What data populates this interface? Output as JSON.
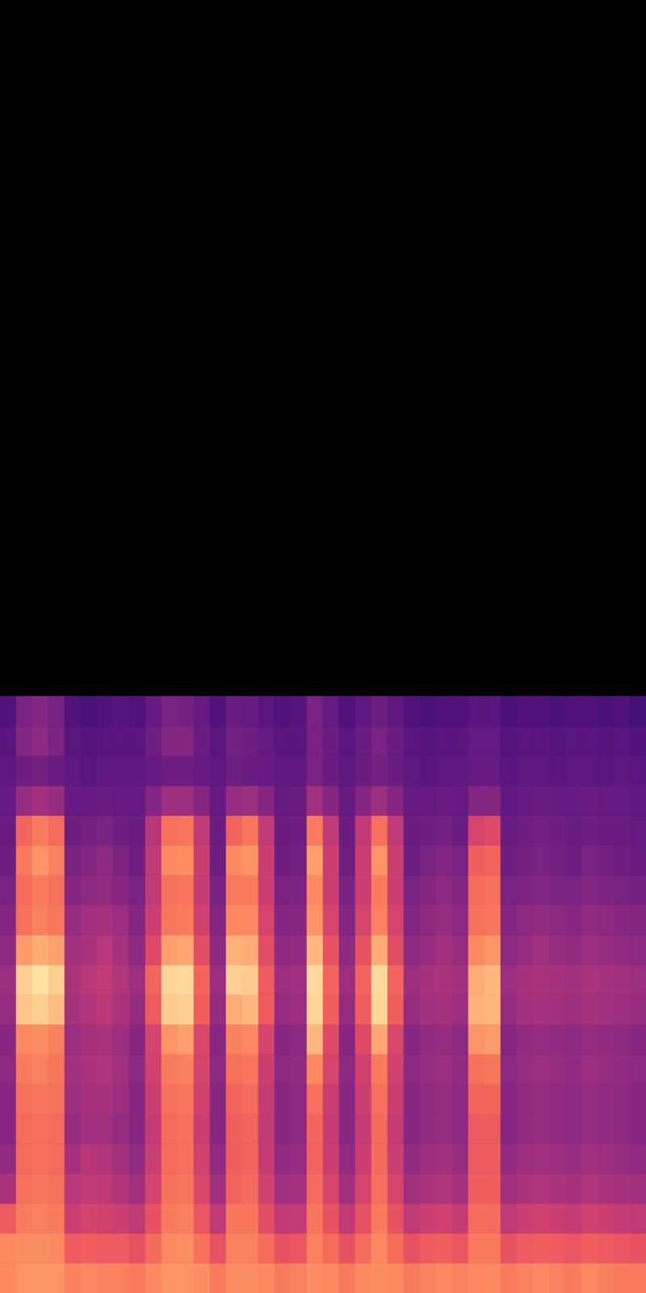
{
  "chart_data": {
    "type": "heatmap",
    "color": "magma",
    "tick_labels": false,
    "xlim": [
      0,
      40
    ],
    "ylim": [
      0,
      130
    ],
    "zlim": [
      -80,
      0
    ],
    "x_edges": [
      0,
      1,
      2,
      3,
      4,
      5,
      6,
      7,
      8,
      9,
      10,
      11,
      12,
      13,
      14,
      15,
      16,
      17,
      18,
      19,
      20,
      21,
      22,
      23,
      24,
      25,
      26,
      27,
      28,
      29,
      30,
      31,
      32,
      33,
      34,
      35,
      36,
      37,
      38,
      39,
      40
    ],
    "y_edges": [
      0,
      3,
      6,
      9,
      12,
      15,
      18,
      21,
      24,
      27,
      30,
      33,
      36,
      39,
      42,
      45,
      48,
      51,
      54,
      57,
      60
    ],
    "cells": [
      [
        -20,
        -18,
        -18,
        -18,
        -21,
        -20,
        -21,
        -21,
        -22,
        -20,
        -18,
        -18,
        -19,
        -22,
        -19,
        -19,
        -20,
        -22,
        -21,
        -19,
        -20,
        -22,
        -20,
        -19,
        -20,
        -22,
        -21,
        -20,
        -21,
        -20,
        -20,
        -22,
        -21,
        -20,
        -21,
        -22,
        -20,
        -21,
        -22,
        -22
      ],
      [
        -20,
        -19,
        -19,
        -20,
        -28,
        -27,
        -28,
        -28,
        -30,
        -25,
        -20,
        -19,
        -24,
        -30,
        -21,
        -21,
        -25,
        -30,
        -29,
        -21,
        -25,
        -30,
        -25,
        -20,
        -25,
        -30,
        -28,
        -27,
        -29,
        -22,
        -22,
        -30,
        -28,
        -27,
        -28,
        -29,
        -27,
        -28,
        -29,
        -30
      ],
      [
        -28,
        -22,
        -21,
        -22,
        -36,
        -34,
        -35,
        -36,
        -38,
        -30,
        -22,
        -21,
        -29,
        -38,
        -23,
        -23,
        -31,
        -38,
        -37,
        -23,
        -30,
        -38,
        -30,
        -22,
        -30,
        -38,
        -36,
        -35,
        -37,
        -25,
        -25,
        -38,
        -36,
        -35,
        -36,
        -37,
        -35,
        -36,
        -37,
        -38
      ],
      [
        -42,
        -24,
        -23,
        -24,
        -40,
        -38,
        -39,
        -41,
        -44,
        -34,
        -24,
        -23,
        -33,
        -44,
        -26,
        -25,
        -35,
        -44,
        -43,
        -25,
        -34,
        -44,
        -34,
        -24,
        -34,
        -44,
        -42,
        -41,
        -43,
        -27,
        -27,
        -44,
        -42,
        -41,
        -42,
        -43,
        -41,
        -42,
        -43,
        -44
      ],
      [
        -47,
        -25,
        -24,
        -25,
        -43,
        -40,
        -41,
        -44,
        -47,
        -36,
        -25,
        -24,
        -35,
        -47,
        -27,
        -26,
        -37,
        -47,
        -46,
        -26,
        -36,
        -47,
        -36,
        -25,
        -36,
        -47,
        -45,
        -44,
        -46,
        -28,
        -28,
        -47,
        -45,
        -44,
        -45,
        -46,
        -44,
        -45,
        -46,
        -47
      ],
      [
        -49,
        -25,
        -24,
        -25,
        -46,
        -44,
        -44,
        -46,
        -49,
        -37,
        -25,
        -24,
        -36,
        -49,
        -27,
        -26,
        -38,
        -49,
        -48,
        -26,
        -37,
        -49,
        -37,
        -25,
        -37,
        -49,
        -47,
        -46,
        -48,
        -28,
        -28,
        -49,
        -47,
        -46,
        -47,
        -48,
        -46,
        -47,
        -48,
        -49
      ],
      [
        -49,
        -24,
        -23,
        -24,
        -45,
        -43,
        -43,
        -45,
        -49,
        -36,
        -24,
        -23,
        -35,
        -49,
        -26,
        -25,
        -37,
        -49,
        -48,
        -24,
        -36,
        -49,
        -36,
        -24,
        -36,
        -49,
        -47,
        -46,
        -48,
        -26,
        -26,
        -49,
        -47,
        -46,
        -47,
        -48,
        -46,
        -47,
        -48,
        -49
      ],
      [
        -48,
        -22,
        -21,
        -23,
        -44,
        -42,
        -41,
        -44,
        -48,
        -35,
        -22,
        -21,
        -34,
        -48,
        -24,
        -23,
        -36,
        -48,
        -47,
        -20,
        -34,
        -48,
        -35,
        -22,
        -35,
        -48,
        -46,
        -45,
        -47,
        -24,
        -23,
        -48,
        -46,
        -45,
        -46,
        -47,
        -45,
        -46,
        -47,
        -48
      ],
      [
        -49,
        -20,
        -19,
        -21,
        -45,
        -43,
        -42,
        -45,
        -49,
        -34,
        -18,
        -16,
        -33,
        -49,
        -21,
        -20,
        -34,
        -49,
        -48,
        -12,
        -32,
        -49,
        -32,
        -15,
        -33,
        -49,
        -47,
        -46,
        -48,
        -18,
        -17,
        -49,
        -47,
        -46,
        -47,
        -48,
        -46,
        -47,
        -48,
        -49
      ],
      [
        -46,
        -10,
        -8,
        -11,
        -43,
        -41,
        -40,
        -42,
        -46,
        -28,
        -9,
        -8,
        -27,
        -46,
        -14,
        -12,
        -28,
        -46,
        -45,
        -7,
        -27,
        -46,
        -27,
        -7,
        -27,
        -46,
        -44,
        -43,
        -45,
        -13,
        -12,
        -46,
        -44,
        -43,
        -44,
        -45,
        -43,
        -44,
        -45,
        -46
      ],
      [
        -45,
        -8,
        -5,
        -8,
        -42,
        -40,
        -38,
        -41,
        -45,
        -26,
        -7,
        -6,
        -26,
        -45,
        -8,
        -9,
        -28,
        -45,
        -44,
        -6,
        -26,
        -45,
        -26,
        -6,
        -26,
        -45,
        -43,
        -42,
        -44,
        -14,
        -12,
        -45,
        -43,
        -42,
        -43,
        -44,
        -42,
        -43,
        -44,
        -45
      ],
      [
        -48,
        -17,
        -14,
        -16,
        -44,
        -42,
        -40,
        -43,
        -48,
        -32,
        -16,
        -15,
        -31,
        -48,
        -13,
        -14,
        -31,
        -48,
        -47,
        -12,
        -30,
        -48,
        -30,
        -14,
        -31,
        -48,
        -46,
        -44,
        -46,
        -20,
        -18,
        -48,
        -46,
        -44,
        -46,
        -47,
        -45,
        -46,
        -47,
        -48
      ],
      [
        -50,
        -24,
        -21,
        -23,
        -46,
        -44,
        -43,
        -45,
        -50,
        -36,
        -23,
        -22,
        -35,
        -50,
        -20,
        -20,
        -34,
        -50,
        -49,
        -18,
        -34,
        -50,
        -34,
        -21,
        -34,
        -50,
        -48,
        -46,
        -48,
        -24,
        -23,
        -50,
        -48,
        -47,
        -48,
        -49,
        -47,
        -48,
        -49,
        -50
      ],
      [
        -52,
        -25,
        -22,
        -24,
        -50,
        -48,
        -47,
        -49,
        -52,
        -38,
        -24,
        -23,
        -37,
        -52,
        -22,
        -22,
        -36,
        -52,
        -51,
        -20,
        -36,
        -52,
        -36,
        -22,
        -36,
        -52,
        -50,
        -48,
        -50,
        -25,
        -24,
        -52,
        -51,
        -50,
        -51,
        -52,
        -50,
        -51,
        -52,
        -53
      ],
      [
        -54,
        -22,
        -18,
        -21,
        -52,
        -50,
        -48,
        -51,
        -54,
        -38,
        -20,
        -19,
        -36,
        -54,
        -20,
        -18,
        -36,
        -54,
        -53,
        -16,
        -36,
        -54,
        -36,
        -18,
        -36,
        -54,
        -52,
        -50,
        -52,
        -27,
        -26,
        -54,
        -53,
        -52,
        -53,
        -54,
        -52,
        -53,
        -54,
        -55
      ],
      [
        -55,
        -26,
        -22,
        -25,
        -54,
        -53,
        -52,
        -54,
        -55,
        -40,
        -24,
        -23,
        -38,
        -55,
        -26,
        -23,
        -38,
        -55,
        -54,
        -22,
        -38,
        -55,
        -38,
        -24,
        -38,
        -55,
        -54,
        -53,
        -55,
        -34,
        -32,
        -55,
        -54,
        -53,
        -54,
        -55,
        -54,
        -55,
        -55,
        -56
      ],
      [
        -56,
        -46,
        -44,
        -46,
        -56,
        -56,
        -55,
        -56,
        -56,
        -50,
        -45,
        -45,
        -50,
        -56,
        -46,
        -45,
        -50,
        -56,
        -55,
        -44,
        -50,
        -56,
        -50,
        -45,
        -50,
        -56,
        -56,
        -55,
        -56,
        -50,
        -50,
        -57,
        -56,
        -55,
        -56,
        -56,
        -55,
        -56,
        -56,
        -57
      ],
      [
        -57,
        -54,
        -53,
        -55,
        -57,
        -58,
        -57,
        -57,
        -57,
        -56,
        -54,
        -54,
        -56,
        -57,
        -54,
        -55,
        -56,
        -57,
        -57,
        -52,
        -55,
        -57,
        -55,
        -53,
        -55,
        -57,
        -58,
        -57,
        -57,
        -56,
        -56,
        -58,
        -57,
        -57,
        -58,
        -57,
        -57,
        -58,
        -57,
        -58
      ],
      [
        -58,
        -50,
        -48,
        -51,
        -58,
        -59,
        -58,
        -58,
        -58,
        -54,
        -50,
        -50,
        -55,
        -58,
        -53,
        -54,
        -56,
        -58,
        -58,
        -52,
        -55,
        -58,
        -55,
        -52,
        -55,
        -58,
        -59,
        -58,
        -58,
        -56,
        -56,
        -59,
        -58,
        -58,
        -59,
        -58,
        -58,
        -59,
        -58,
        -60
      ],
      [
        -60,
        -52,
        -50,
        -52,
        -60,
        -61,
        -60,
        -59,
        -60,
        -56,
        -52,
        -53,
        -56,
        -60,
        -55,
        -56,
        -58,
        -60,
        -59,
        -52,
        -56,
        -60,
        -57,
        -54,
        -57,
        -60,
        -61,
        -60,
        -60,
        -58,
        -58,
        -61,
        -60,
        -60,
        -61,
        -60,
        -60,
        -61,
        -60,
        -62
      ]
    ]
  }
}
